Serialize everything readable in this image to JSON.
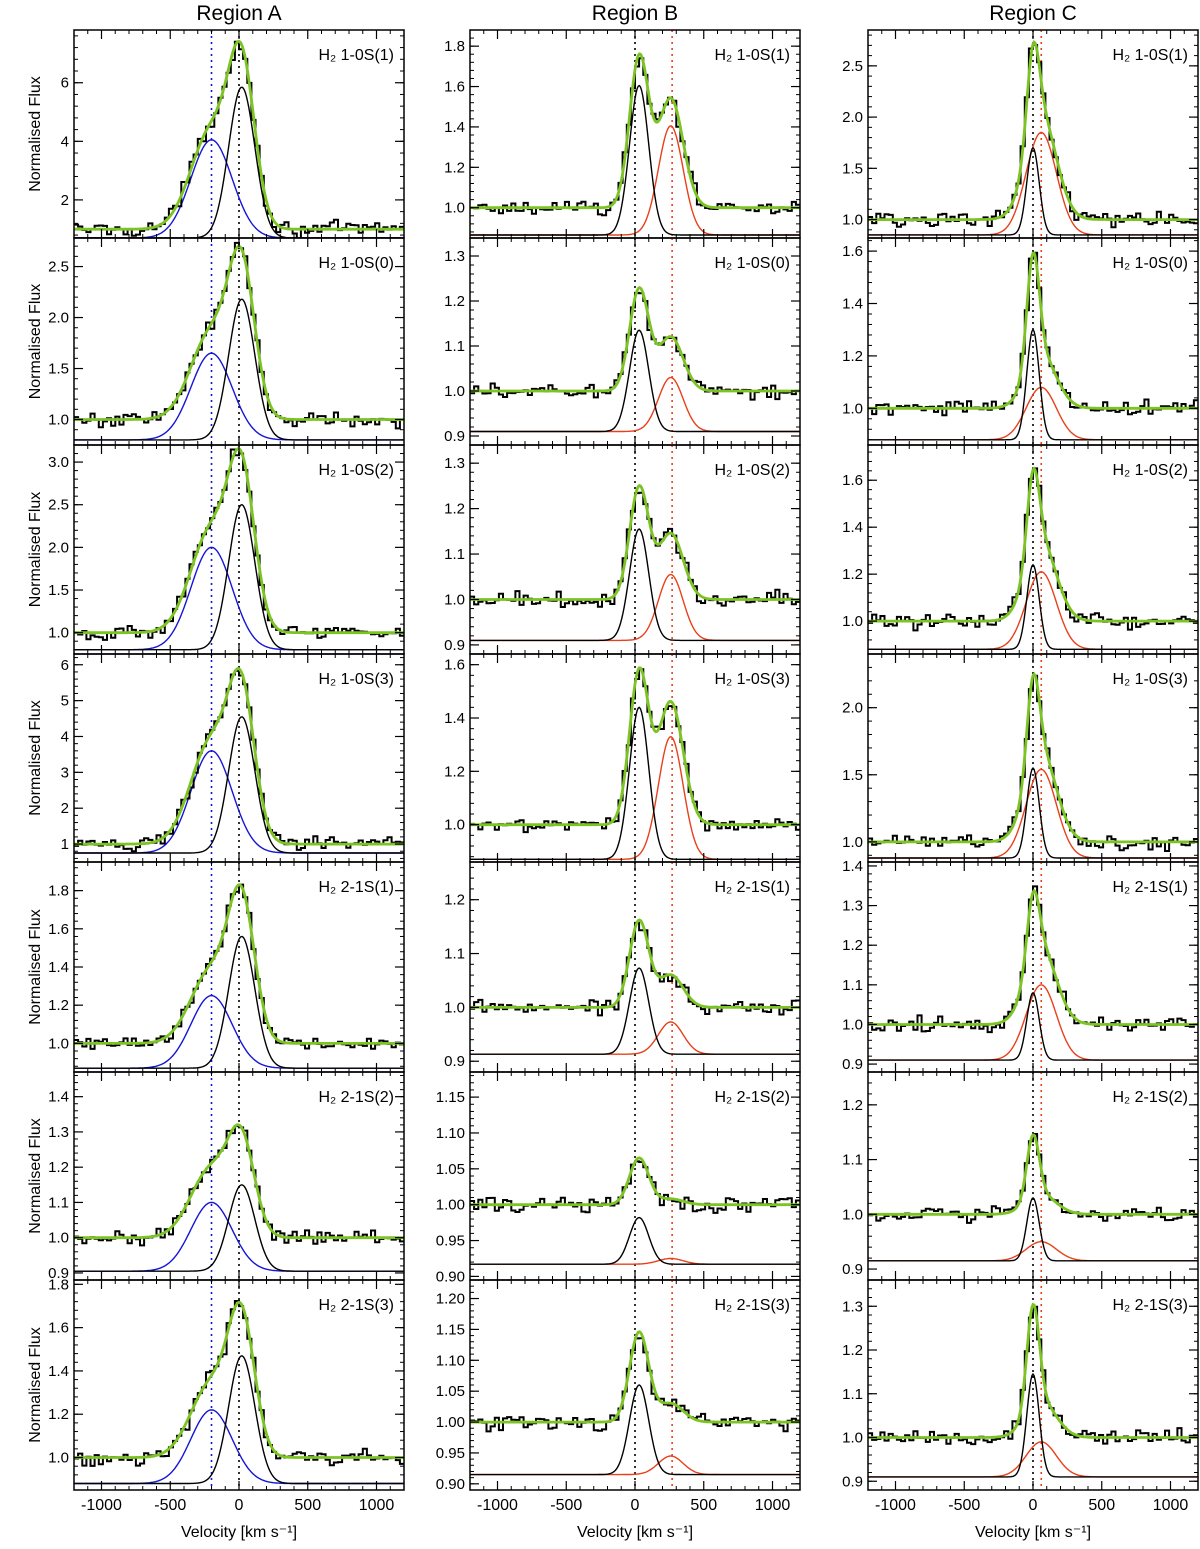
{
  "chart_data": {
    "type": "line",
    "columns": [
      {
        "title": "Region A",
        "ylabel": "Normalised Flux",
        "offset_line_x": -200,
        "offset_color": "#1515d6",
        "second_color": "#1515d6"
      },
      {
        "title": "Region B",
        "ylabel": "",
        "offset_line_x": 270,
        "offset_color": "#e8401a",
        "second_color": "#e8401a"
      },
      {
        "title": "Region C",
        "ylabel": "",
        "offset_line_x": 60,
        "offset_color": "#e8401a",
        "second_color": "#e8401a"
      }
    ],
    "xlabel": "Velocity [km s⁻¹]",
    "xlim": [
      -1200,
      1200
    ],
    "xticks": [
      -1000,
      -500,
      0,
      500,
      1000
    ],
    "xtick_labels": [
      "-1000",
      "-500",
      "0",
      "500",
      "1000"
    ],
    "colors": {
      "data": "#000000",
      "total_fit": "#7cc324",
      "core": "#000000",
      "systemic_line": "#000000"
    },
    "rows": [
      {
        "line": "H₂ 1-0S(1)",
        "panels": [
          {
            "ylim": [
              0.7,
              7.8
            ],
            "yticks": [
              2,
              4,
              6
            ],
            "ytick_labels": [
              "2",
              "4",
              "6"
            ],
            "baseline": 1.0,
            "comp_base": 0.7,
            "core": {
              "amp": 5.15,
              "center": 20,
              "sigma": 95
            },
            "second": {
              "amp": 3.35,
              "center": -200,
              "sigma": 150
            }
          },
          {
            "ylim": [
              0.85,
              1.88
            ],
            "yticks": [
              1.0,
              1.2,
              1.4,
              1.6,
              1.8
            ],
            "ytick_labels": [
              "1.0",
              "1.2",
              "1.4",
              "1.6",
              "1.8"
            ],
            "baseline": 1.0,
            "comp_base": 0.865,
            "core": {
              "amp": 0.74,
              "center": 30,
              "sigma": 70
            },
            "second": {
              "amp": 0.54,
              "center": 260,
              "sigma": 90
            }
          },
          {
            "ylim": [
              0.82,
              2.85
            ],
            "yticks": [
              1.0,
              1.5,
              2.0,
              2.5
            ],
            "ytick_labels": [
              "1.0",
              "1.5",
              "2.0",
              "2.5"
            ],
            "baseline": 1.0,
            "comp_base": 0.85,
            "core": {
              "amp": 0.85,
              "center": 0,
              "sigma": 45
            },
            "second": {
              "amp": 1.0,
              "center": 60,
              "sigma": 110
            }
          }
        ]
      },
      {
        "line": "H₂ 1-0S(0)",
        "panels": [
          {
            "ylim": [
              0.75,
              2.78
            ],
            "yticks": [
              1.0,
              1.5,
              2.0,
              2.5
            ],
            "ytick_labels": [
              "1.0",
              "1.5",
              "2.0",
              "2.5"
            ],
            "baseline": 1.0,
            "comp_base": 0.8,
            "core": {
              "amp": 1.38,
              "center": 20,
              "sigma": 95
            },
            "second": {
              "amp": 0.85,
              "center": -200,
              "sigma": 150
            }
          },
          {
            "ylim": [
              0.88,
              1.34
            ],
            "yticks": [
              0.9,
              1.0,
              1.1,
              1.2,
              1.3
            ],
            "ytick_labels": [
              "0.9",
              "1.0",
              "1.1",
              "1.2",
              "1.3"
            ],
            "baseline": 1.0,
            "comp_base": 0.91,
            "core": {
              "amp": 0.225,
              "center": 30,
              "sigma": 70
            },
            "second": {
              "amp": 0.12,
              "center": 260,
              "sigma": 90
            }
          },
          {
            "ylim": [
              0.86,
              1.65
            ],
            "yticks": [
              1.0,
              1.2,
              1.4,
              1.6
            ],
            "ytick_labels": [
              "1.0",
              "1.2",
              "1.4",
              "1.6"
            ],
            "baseline": 1.0,
            "comp_base": 0.88,
            "core": {
              "amp": 0.42,
              "center": 0,
              "sigma": 45
            },
            "second": {
              "amp": 0.2,
              "center": 60,
              "sigma": 110
            }
          }
        ]
      },
      {
        "line": "H₂ 1-0S(2)",
        "panels": [
          {
            "ylim": [
              0.75,
              3.2
            ],
            "yticks": [
              1.0,
              1.5,
              2.0,
              2.5,
              3.0
            ],
            "ytick_labels": [
              "1.0",
              "1.5",
              "2.0",
              "2.5",
              "3.0"
            ],
            "baseline": 1.0,
            "comp_base": 0.8,
            "core": {
              "amp": 1.7,
              "center": 20,
              "sigma": 95
            },
            "second": {
              "amp": 1.2,
              "center": -200,
              "sigma": 150
            }
          },
          {
            "ylim": [
              0.88,
              1.34
            ],
            "yticks": [
              0.9,
              1.0,
              1.1,
              1.2,
              1.3
            ],
            "ytick_labels": [
              "0.9",
              "1.0",
              "1.1",
              "1.2",
              "1.3"
            ],
            "baseline": 1.0,
            "comp_base": 0.91,
            "core": {
              "amp": 0.245,
              "center": 30,
              "sigma": 70
            },
            "second": {
              "amp": 0.145,
              "center": 260,
              "sigma": 90
            }
          },
          {
            "ylim": [
              0.86,
              1.75
            ],
            "yticks": [
              1.0,
              1.2,
              1.4,
              1.6
            ],
            "ytick_labels": [
              "1.0",
              "1.2",
              "1.4",
              "1.6"
            ],
            "baseline": 1.0,
            "comp_base": 0.88,
            "core": {
              "amp": 0.36,
              "center": 0,
              "sigma": 45
            },
            "second": {
              "amp": 0.33,
              "center": 60,
              "sigma": 110
            }
          }
        ]
      },
      {
        "line": "H₂ 1-0S(3)",
        "panels": [
          {
            "ylim": [
              0.5,
              6.3
            ],
            "yticks": [
              1,
              2,
              3,
              4,
              5,
              6
            ],
            "ytick_labels": [
              "1",
              "2",
              "3",
              "4",
              "5",
              "6"
            ],
            "baseline": 1.0,
            "comp_base": 0.75,
            "core": {
              "amp": 3.8,
              "center": 20,
              "sigma": 95
            },
            "second": {
              "amp": 2.85,
              "center": -200,
              "sigma": 150
            }
          },
          {
            "ylim": [
              0.86,
              1.64
            ],
            "yticks": [
              1.0,
              1.2,
              1.4,
              1.6
            ],
            "ytick_labels": [
              "1.0",
              "1.2",
              "1.4",
              "1.6"
            ],
            "baseline": 1.0,
            "comp_base": 0.87,
            "core": {
              "amp": 0.57,
              "center": 30,
              "sigma": 70
            },
            "second": {
              "amp": 0.46,
              "center": 260,
              "sigma": 90
            }
          },
          {
            "ylim": [
              0.85,
              2.4
            ],
            "yticks": [
              1.0,
              1.5,
              2.0
            ],
            "ytick_labels": [
              "1.0",
              "1.5",
              "2.0"
            ],
            "baseline": 1.0,
            "comp_base": 0.88,
            "core": {
              "amp": 0.67,
              "center": 0,
              "sigma": 45
            },
            "second": {
              "amp": 0.66,
              "center": 60,
              "sigma": 110
            }
          }
        ]
      },
      {
        "line": "H₂ 2-1S(1)",
        "panels": [
          {
            "ylim": [
              0.85,
              1.95
            ],
            "yticks": [
              1.0,
              1.2,
              1.4,
              1.6,
              1.8
            ],
            "ytick_labels": [
              "1.0",
              "1.2",
              "1.4",
              "1.6",
              "1.8"
            ],
            "baseline": 1.0,
            "comp_base": 0.87,
            "core": {
              "amp": 0.69,
              "center": 20,
              "sigma": 95
            },
            "second": {
              "amp": 0.38,
              "center": -200,
              "sigma": 150
            }
          },
          {
            "ylim": [
              0.88,
              1.27
            ],
            "yticks": [
              0.9,
              1.0,
              1.1,
              1.2
            ],
            "ytick_labels": [
              "0.9",
              "1.0",
              "1.1",
              "1.2"
            ],
            "baseline": 1.0,
            "comp_base": 0.913,
            "core": {
              "amp": 0.16,
              "center": 30,
              "sigma": 70
            },
            "second": {
              "amp": 0.06,
              "center": 260,
              "sigma": 90
            }
          },
          {
            "ylim": [
              0.88,
              1.41
            ],
            "yticks": [
              0.9,
              1.0,
              1.1,
              1.2,
              1.3,
              1.4
            ],
            "ytick_labels": [
              "0.9",
              "1.0",
              "1.1",
              "1.2",
              "1.3",
              "1.4"
            ],
            "baseline": 1.0,
            "comp_base": 0.91,
            "core": {
              "amp": 0.17,
              "center": 0,
              "sigma": 45
            },
            "second": {
              "amp": 0.19,
              "center": 60,
              "sigma": 110
            }
          }
        ]
      },
      {
        "line": "H₂ 2-1S(2)",
        "panels": [
          {
            "ylim": [
              0.88,
              1.47
            ],
            "yticks": [
              0.9,
              1.0,
              1.1,
              1.2,
              1.3,
              1.4
            ],
            "ytick_labels": [
              "0.9",
              "1.0",
              "1.1",
              "1.2",
              "1.3",
              "1.4"
            ],
            "baseline": 1.0,
            "comp_base": 0.905,
            "core": {
              "amp": 0.245,
              "center": 20,
              "sigma": 95
            },
            "second": {
              "amp": 0.195,
              "center": -200,
              "sigma": 150
            }
          },
          {
            "ylim": [
              0.895,
              1.185
            ],
            "yticks": [
              0.9,
              0.95,
              1.0,
              1.05,
              1.1,
              1.15
            ],
            "ytick_labels": [
              "0.90",
              "0.95",
              "1.00",
              "1.05",
              "1.10",
              "1.15"
            ],
            "baseline": 1.0,
            "comp_base": 0.917,
            "core": {
              "amp": 0.065,
              "center": 30,
              "sigma": 70
            },
            "second": {
              "amp": 0.008,
              "center": 260,
              "sigma": 90
            }
          },
          {
            "ylim": [
              0.88,
              1.26
            ],
            "yticks": [
              0.9,
              1.0,
              1.1,
              1.2
            ],
            "ytick_labels": [
              "0.9",
              "1.0",
              "1.1",
              "1.2"
            ],
            "baseline": 1.0,
            "comp_base": 0.915,
            "core": {
              "amp": 0.115,
              "center": 0,
              "sigma": 45
            },
            "second": {
              "amp": 0.035,
              "center": 60,
              "sigma": 110
            }
          }
        ]
      },
      {
        "line": "H₂ 2-1S(3)",
        "panels": [
          {
            "ylim": [
              0.85,
              1.82
            ],
            "yticks": [
              1.0,
              1.2,
              1.4,
              1.6,
              1.8
            ],
            "ytick_labels": [
              "1.0",
              "1.2",
              "1.4",
              "1.6",
              "1.8"
            ],
            "baseline": 1.0,
            "comp_base": 0.88,
            "core": {
              "amp": 0.59,
              "center": 20,
              "sigma": 95
            },
            "second": {
              "amp": 0.34,
              "center": -200,
              "sigma": 150
            }
          },
          {
            "ylim": [
              0.89,
              1.23
            ],
            "yticks": [
              0.9,
              0.95,
              1.0,
              1.05,
              1.1,
              1.15,
              1.2
            ],
            "ytick_labels": [
              "0.90",
              "0.95",
              "1.00",
              "1.05",
              "1.10",
              "1.15",
              "1.20"
            ],
            "baseline": 1.0,
            "comp_base": 0.915,
            "core": {
              "amp": 0.145,
              "center": 30,
              "sigma": 70
            },
            "second": {
              "amp": 0.03,
              "center": 260,
              "sigma": 90
            }
          },
          {
            "ylim": [
              0.88,
              1.36
            ],
            "yticks": [
              0.9,
              1.0,
              1.1,
              1.2,
              1.3
            ],
            "ytick_labels": [
              "0.9",
              "1.0",
              "1.1",
              "1.2",
              "1.3"
            ],
            "baseline": 1.0,
            "comp_base": 0.91,
            "core": {
              "amp": 0.235,
              "center": 0,
              "sigma": 45
            },
            "second": {
              "amp": 0.08,
              "center": 60,
              "sigma": 110
            }
          }
        ]
      }
    ]
  }
}
